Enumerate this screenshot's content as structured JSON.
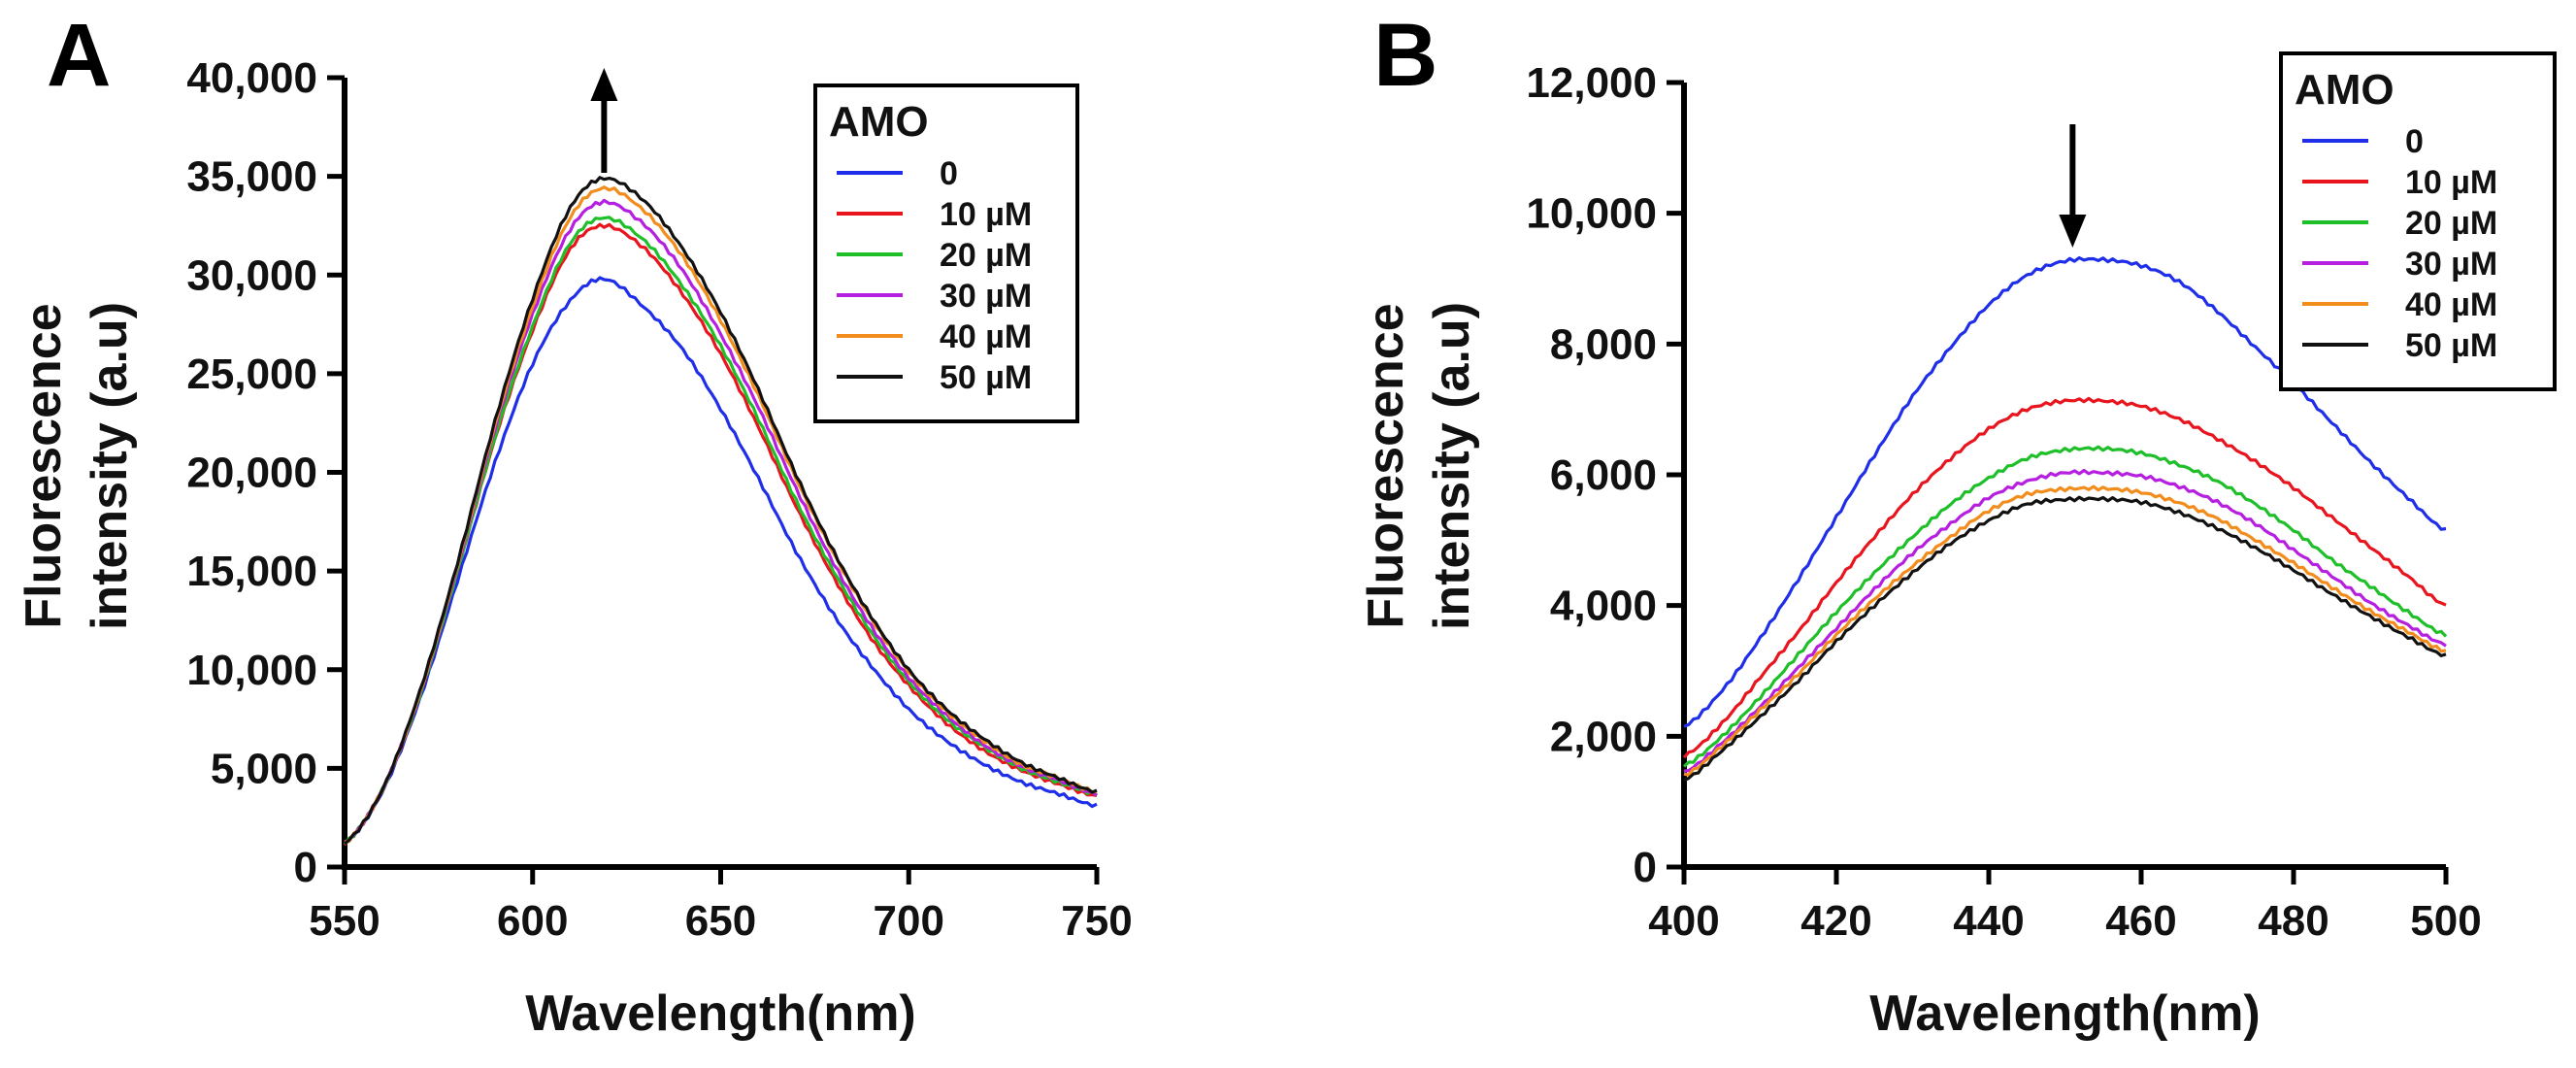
{
  "chart_data": [
    {
      "type": "line",
      "panel_label": "A",
      "xlabel": "Wavelength(nm)",
      "ylabel": [
        "Fluorescence",
        "intensity (a.u)"
      ],
      "xlim": [
        550,
        750
      ],
      "ylim": [
        0,
        40000
      ],
      "xticks": [
        550,
        600,
        650,
        700,
        750
      ],
      "xtick_labels": [
        "550",
        "600",
        "650",
        "700",
        "750"
      ],
      "yticks": [
        0,
        5000,
        10000,
        15000,
        20000,
        25000,
        30000,
        35000,
        40000
      ],
      "ytick_labels": [
        "0",
        "5,000",
        "10,000",
        "15,000",
        "20,000",
        "25,000",
        "30,000",
        "35,000",
        "40,000"
      ],
      "legend_title": "AMO",
      "legend_position": "top-right",
      "arrow": {
        "direction": "up",
        "x": 619
      },
      "x": [
        550,
        560,
        570,
        580,
        590,
        600,
        610,
        619,
        630,
        640,
        650,
        660,
        670,
        680,
        690,
        700,
        710,
        720,
        730,
        740,
        750
      ],
      "series": [
        {
          "name": "0",
          "color": "#1f2ee8",
          "values": [
            1200,
            3800,
            8500,
            14500,
            20500,
            25500,
            28700,
            29800,
            28300,
            26200,
            23200,
            19700,
            16000,
            12800,
            10200,
            8000,
            6400,
            5200,
            4300,
            3700,
            3100
          ]
        },
        {
          "name": "10 µM",
          "color": "#e8141e",
          "values": [
            1200,
            3900,
            8700,
            15000,
            21700,
            27200,
            31300,
            32500,
            31300,
            29000,
            26000,
            22300,
            18300,
            14700,
            11600,
            9200,
            7300,
            5900,
            4900,
            4200,
            3600
          ]
        },
        {
          "name": "20 µM",
          "color": "#1fbf2a",
          "values": [
            1200,
            3900,
            8700,
            15000,
            21800,
            27400,
            31600,
            32900,
            31700,
            29400,
            26400,
            22700,
            18600,
            15000,
            11900,
            9400,
            7500,
            6100,
            5000,
            4300,
            3700
          ]
        },
        {
          "name": "30 µM",
          "color": "#b61fe0",
          "values": [
            1200,
            3900,
            8800,
            15200,
            22200,
            28000,
            32300,
            33700,
            32500,
            30200,
            27000,
            23300,
            19200,
            15400,
            12200,
            9600,
            7700,
            6200,
            5100,
            4400,
            3700
          ]
        },
        {
          "name": "40 µM",
          "color": "#f28c1c",
          "values": [
            1200,
            3900,
            8800,
            15300,
            22400,
            28400,
            32900,
            34400,
            33200,
            30900,
            27700,
            23900,
            19700,
            15900,
            12600,
            9900,
            7900,
            6400,
            5200,
            4500,
            3800
          ]
        },
        {
          "name": "50 µM",
          "color": "#111111",
          "values": [
            1200,
            3900,
            8900,
            15400,
            22600,
            28800,
            33400,
            34900,
            33700,
            31300,
            28100,
            24200,
            19900,
            16000,
            12700,
            10000,
            8000,
            6500,
            5300,
            4500,
            3800
          ]
        }
      ]
    },
    {
      "type": "line",
      "panel_label": "B",
      "xlabel": "Wavelength(nm)",
      "ylabel": [
        "Fluorescence",
        "intensity (a.u)"
      ],
      "xlim": [
        400,
        500
      ],
      "ylim": [
        0,
        12000
      ],
      "xticks": [
        400,
        420,
        440,
        460,
        480,
        500
      ],
      "xtick_labels": [
        "400",
        "420",
        "440",
        "460",
        "480",
        "500"
      ],
      "yticks": [
        0,
        2000,
        4000,
        6000,
        8000,
        10000,
        12000
      ],
      "ytick_labels": [
        "0",
        "2,000",
        "4,000",
        "6,000",
        "8,000",
        "10,000",
        "12,000"
      ],
      "legend_title": "AMO",
      "legend_position": "top-right",
      "arrow": {
        "direction": "down",
        "x": 451
      },
      "x": [
        400,
        405,
        410,
        415,
        420,
        425,
        430,
        435,
        440,
        445,
        450,
        455,
        460,
        465,
        470,
        475,
        480,
        485,
        490,
        495,
        500
      ],
      "series": [
        {
          "name": "0",
          "color": "#1f2ee8",
          "values": [
            2150,
            2700,
            3500,
            4400,
            5350,
            6300,
            7200,
            7950,
            8600,
            9050,
            9270,
            9290,
            9200,
            8950,
            8500,
            7950,
            7400,
            6800,
            6200,
            5650,
            5150
          ]
        },
        {
          "name": "10 µM",
          "color": "#e8141e",
          "values": [
            1700,
            2200,
            2900,
            3600,
            4350,
            5050,
            5700,
            6250,
            6700,
            7000,
            7130,
            7130,
            7050,
            6850,
            6550,
            6200,
            5800,
            5350,
            4900,
            4450,
            4000
          ]
        },
        {
          "name": "20 µM",
          "color": "#1fbf2a",
          "values": [
            1550,
            2000,
            2600,
            3250,
            3900,
            4500,
            5050,
            5550,
            5950,
            6250,
            6380,
            6400,
            6330,
            6150,
            5900,
            5550,
            5150,
            4700,
            4300,
            3900,
            3550
          ]
        },
        {
          "name": "30 µM",
          "color": "#b61fe0",
          "values": [
            1450,
            1900,
            2450,
            3050,
            3650,
            4250,
            4800,
            5250,
            5650,
            5900,
            6030,
            6030,
            5980,
            5820,
            5580,
            5250,
            4850,
            4450,
            4050,
            3700,
            3400
          ]
        },
        {
          "name": "40 µM",
          "color": "#f28c1c",
          "values": [
            1400,
            1850,
            2400,
            2950,
            3550,
            4100,
            4600,
            5050,
            5450,
            5700,
            5780,
            5790,
            5730,
            5570,
            5330,
            5000,
            4650,
            4280,
            3920,
            3600,
            3300
          ]
        },
        {
          "name": "50 µM",
          "color": "#111111",
          "values": [
            1330,
            1780,
            2300,
            2850,
            3450,
            4000,
            4500,
            4950,
            5300,
            5550,
            5620,
            5630,
            5580,
            5420,
            5180,
            4880,
            4540,
            4180,
            3840,
            3520,
            3230
          ]
        }
      ]
    }
  ]
}
